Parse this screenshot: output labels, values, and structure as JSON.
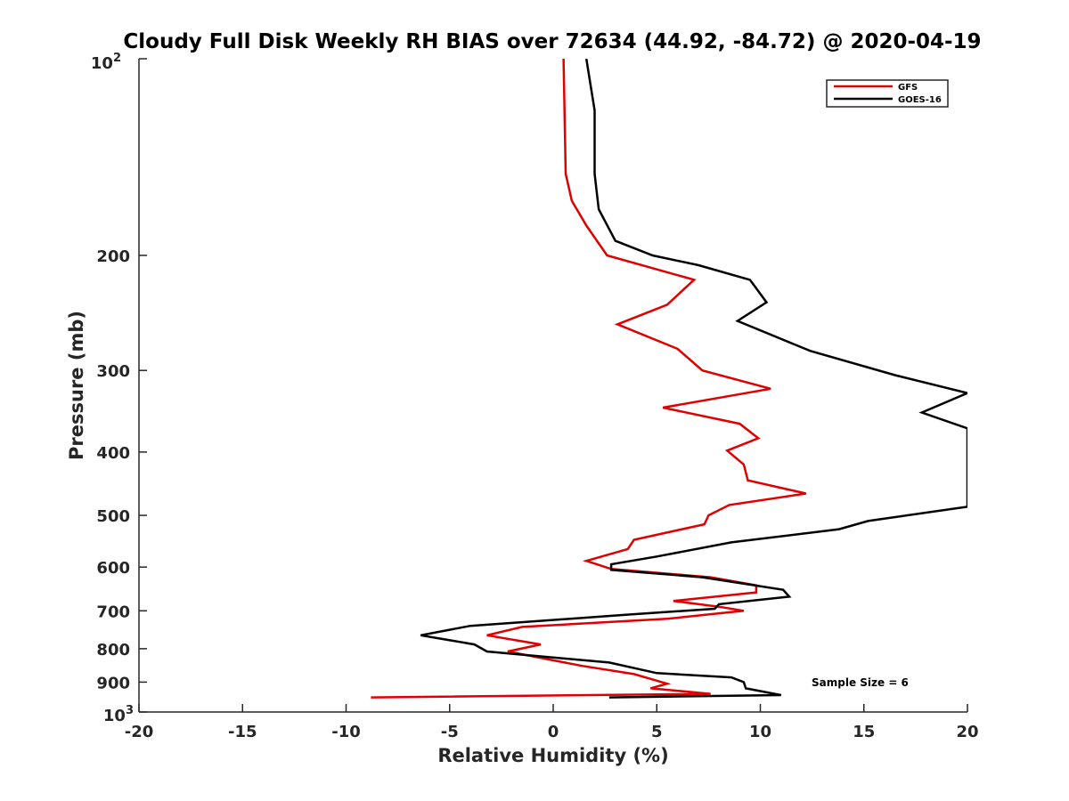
{
  "chart_data": {
    "type": "line",
    "title": "Cloudy Full Disk Weekly RH BIAS over 72634 (44.92, -84.72) @ 2020-04-19",
    "xlabel": "Relative Humidity (%)",
    "ylabel": "Pressure (mb)",
    "xlim": [
      -20,
      20
    ],
    "ylim": [
      100,
      1000
    ],
    "y_scale": "log",
    "y_reversed": true,
    "grid": false,
    "legend_position": "top-right",
    "x_ticks": [
      -20,
      -15,
      -10,
      -5,
      0,
      5,
      10,
      15,
      20
    ],
    "x_tick_labels": [
      "-20",
      "-15",
      "-10",
      "-5",
      "0",
      "5",
      "10",
      "15",
      "20"
    ],
    "y_ticks": [
      200,
      300,
      400,
      500,
      600,
      700,
      800,
      900
    ],
    "y_tick_labels": [
      "200",
      "300",
      "400",
      "500",
      "600",
      "700",
      "800",
      "900"
    ],
    "y_top_label": {
      "base": "10",
      "exp": "2"
    },
    "y_bottom_label": {
      "base": "10",
      "exp": "3"
    },
    "annotation": "Sample Size = 6",
    "series": [
      {
        "name": "GFS",
        "color": "#e00000",
        "points": [
          [
            0.5,
            100
          ],
          [
            0.6,
            150
          ],
          [
            0.9,
            165
          ],
          [
            1.6,
            180
          ],
          [
            2.6,
            200
          ],
          [
            6.8,
            218
          ],
          [
            5.5,
            238
          ],
          [
            3.1,
            255
          ],
          [
            6.0,
            278
          ],
          [
            7.2,
            300
          ],
          [
            10.5,
            320
          ],
          [
            5.3,
            342
          ],
          [
            9.0,
            362
          ],
          [
            9.9,
            381
          ],
          [
            8.4,
            398
          ],
          [
            9.2,
            418
          ],
          [
            9.4,
            442
          ],
          [
            12.2,
            463
          ],
          [
            8.5,
            482
          ],
          [
            7.5,
            500
          ],
          [
            7.3,
            516
          ],
          [
            3.9,
            545
          ],
          [
            3.6,
            563
          ],
          [
            1.6,
            587
          ],
          [
            2.8,
            604
          ],
          [
            7.6,
            622
          ],
          [
            9.8,
            640
          ],
          [
            9.8,
            656
          ],
          [
            5.8,
            676
          ],
          [
            8.0,
            690
          ],
          [
            9.2,
            700
          ],
          [
            5.5,
            720
          ],
          [
            -1.5,
            741
          ],
          [
            -3.2,
            763
          ],
          [
            -0.6,
            788
          ],
          [
            -2.2,
            808
          ],
          [
            1.4,
            850
          ],
          [
            3.9,
            875
          ],
          [
            5.5,
            905
          ],
          [
            4.7,
            920
          ],
          [
            7.6,
            938
          ],
          [
            -8.8,
            950
          ]
        ]
      },
      {
        "name": "GOES-16",
        "color": "#000000",
        "points": [
          [
            1.6,
            100
          ],
          [
            2.0,
            120
          ],
          [
            2.0,
            150
          ],
          [
            2.2,
            170
          ],
          [
            3.0,
            190
          ],
          [
            4.8,
            200
          ],
          [
            7.0,
            207
          ],
          [
            9.5,
            218
          ],
          [
            10.3,
            236
          ],
          [
            8.9,
            252
          ],
          [
            12.4,
            280
          ],
          [
            16.5,
            305
          ],
          [
            20.0,
            325
          ],
          [
            17.8,
            348
          ],
          [
            20.0,
            368
          ],
          [
            20.0,
            485
          ],
          [
            15.2,
            510
          ],
          [
            13.8,
            525
          ],
          [
            8.6,
            550
          ],
          [
            5.0,
            578
          ],
          [
            2.8,
            594
          ],
          [
            2.8,
            606
          ],
          [
            7.2,
            622
          ],
          [
            11.1,
            650
          ],
          [
            11.4,
            666
          ],
          [
            8.0,
            684
          ],
          [
            7.8,
            695
          ],
          [
            3.5,
            710
          ],
          [
            -4.0,
            738
          ],
          [
            -6.4,
            763
          ],
          [
            -3.8,
            788
          ],
          [
            -3.2,
            808
          ],
          [
            2.7,
            840
          ],
          [
            5.0,
            872
          ],
          [
            8.6,
            885
          ],
          [
            9.2,
            900
          ],
          [
            9.3,
            920
          ],
          [
            11.0,
            942
          ],
          [
            2.7,
            950
          ]
        ]
      }
    ]
  }
}
